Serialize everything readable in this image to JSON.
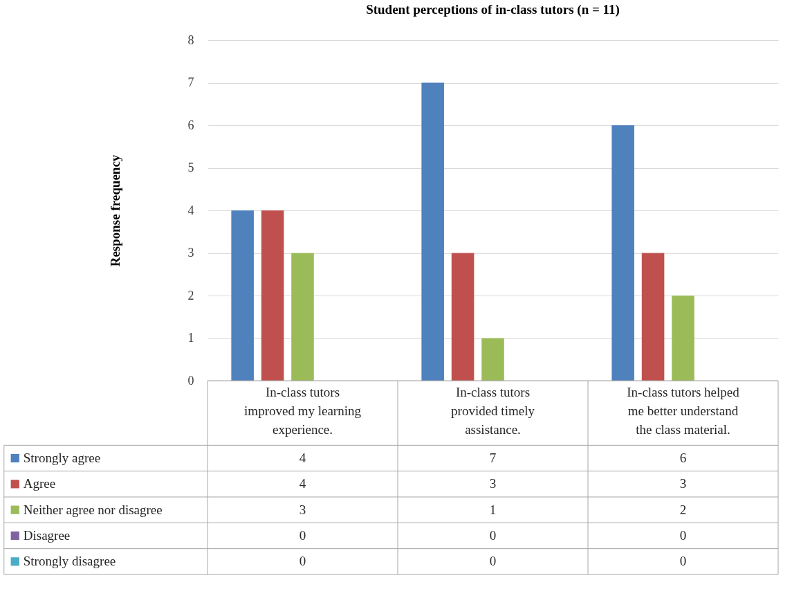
{
  "chart_data": {
    "type": "bar",
    "title": "Student perceptions of in-class tutors (n = 11)",
    "ylabel": "Response frequency",
    "categories": [
      "In-class tutors improved my learning experience.",
      "In-class tutors provided timely assistance.",
      "In-class tutors helped me better understand the class material."
    ],
    "series": [
      {
        "name": "Strongly agree",
        "color": "#4f81bd",
        "values": [
          4,
          7,
          6
        ]
      },
      {
        "name": "Agree",
        "color": "#c0504d",
        "values": [
          4,
          3,
          3
        ]
      },
      {
        "name": "Neither agree nor disagree",
        "color": "#9bbb59",
        "values": [
          3,
          1,
          2
        ]
      },
      {
        "name": "Disagree",
        "color": "#8064a2",
        "values": [
          0,
          0,
          0
        ]
      },
      {
        "name": "Strongly disagree",
        "color": "#4bacc6",
        "values": [
          0,
          0,
          0
        ]
      }
    ],
    "ylim": [
      0,
      8
    ],
    "yticks": [
      0,
      1,
      2,
      3,
      4,
      5,
      6,
      7,
      8
    ],
    "grid": "y",
    "legend": "bottom",
    "data_labels": true
  }
}
